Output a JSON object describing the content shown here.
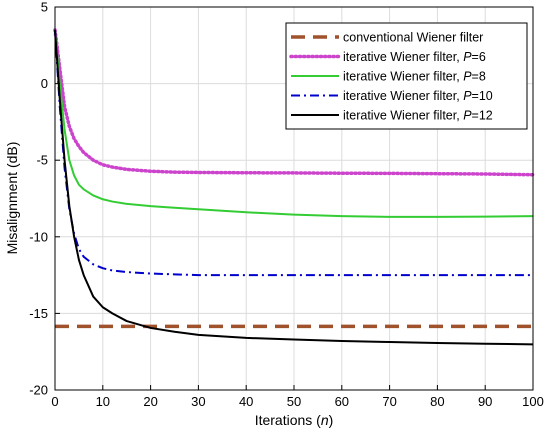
{
  "chart_data": {
    "type": "line",
    "title": "",
    "xlabel": "Iterations (n)",
    "xlabel_parts": [
      "Iterations (",
      "n",
      ")"
    ],
    "ylabel": "Misalignment (dB)",
    "xlim": [
      0,
      100
    ],
    "ylim": [
      -20,
      5
    ],
    "xticks": [
      0,
      10,
      20,
      30,
      40,
      50,
      60,
      70,
      80,
      90,
      100
    ],
    "yticks": [
      5,
      0,
      -5,
      -10,
      -15,
      -20
    ],
    "grid": true,
    "legend_position": "top-right",
    "series": [
      {
        "name": "conventional Wiener filter",
        "legend": [
          "conventional Wiener filter"
        ],
        "color": "#a0522d",
        "dash": "dashed",
        "x": [
          0,
          100
        ],
        "y": [
          -15.85,
          -15.85
        ]
      },
      {
        "name": "iterative Wiener filter, P=6",
        "legend": [
          "iterative Wiener filter, ",
          "P",
          "=6"
        ],
        "color": "#cc44cc",
        "dash": "dotted",
        "x": [
          0,
          1,
          2,
          3,
          4,
          5,
          6,
          8,
          10,
          12,
          15,
          20,
          25,
          30,
          40,
          50,
          60,
          70,
          80,
          90,
          100
        ],
        "y": [
          3.5,
          1.0,
          -1.5,
          -2.8,
          -3.6,
          -4.1,
          -4.5,
          -5.0,
          -5.3,
          -5.45,
          -5.6,
          -5.72,
          -5.78,
          -5.8,
          -5.82,
          -5.83,
          -5.85,
          -5.86,
          -5.88,
          -5.9,
          -5.95
        ]
      },
      {
        "name": "iterative Wiener filter, P=8",
        "legend": [
          "iterative Wiener filter, ",
          "P",
          "=8"
        ],
        "color": "#33cc33",
        "dash": "solid",
        "x": [
          0,
          1,
          2,
          3,
          4,
          5,
          6,
          8,
          10,
          12,
          15,
          20,
          25,
          30,
          40,
          50,
          60,
          70,
          80,
          90,
          100
        ],
        "y": [
          3.5,
          0.0,
          -3.0,
          -5.0,
          -6.0,
          -6.6,
          -6.9,
          -7.3,
          -7.55,
          -7.7,
          -7.85,
          -8.0,
          -8.1,
          -8.2,
          -8.4,
          -8.55,
          -8.65,
          -8.7,
          -8.7,
          -8.68,
          -8.65
        ]
      },
      {
        "name": "iterative Wiener filter, P=10",
        "legend": [
          "iterative Wiener filter, ",
          "P",
          "=10"
        ],
        "color": "#0000cc",
        "dash": "dashdot",
        "x": [
          0,
          1,
          2,
          3,
          4,
          5,
          6,
          8,
          10,
          12,
          15,
          20,
          25,
          30,
          40,
          50,
          60,
          70,
          80,
          90,
          100
        ],
        "y": [
          3.5,
          -1.5,
          -5.5,
          -8.2,
          -9.8,
          -10.8,
          -11.3,
          -11.8,
          -12.05,
          -12.2,
          -12.3,
          -12.4,
          -12.45,
          -12.5,
          -12.5,
          -12.5,
          -12.5,
          -12.5,
          -12.5,
          -12.5,
          -12.5
        ]
      },
      {
        "name": "iterative Wiener filter, P=12",
        "legend": [
          "iterative Wiener filter, ",
          "P",
          "=12"
        ],
        "color": "#000000",
        "dash": "solid",
        "x": [
          0,
          1,
          2,
          3,
          4,
          5,
          6,
          8,
          10,
          12,
          15,
          20,
          25,
          30,
          40,
          50,
          60,
          70,
          80,
          90,
          100
        ],
        "y": [
          3.5,
          -1.0,
          -5.0,
          -8.0,
          -10.0,
          -11.5,
          -12.5,
          -13.9,
          -14.6,
          -15.0,
          -15.5,
          -15.95,
          -16.2,
          -16.4,
          -16.6,
          -16.7,
          -16.8,
          -16.87,
          -16.93,
          -16.98,
          -17.02
        ]
      }
    ]
  }
}
